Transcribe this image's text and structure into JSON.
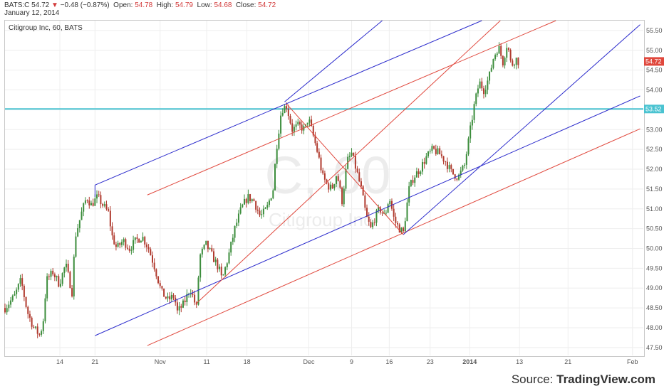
{
  "header": {
    "symbol": "BATS:C",
    "last": "54.72",
    "change_arrow": "▼",
    "change": "−0.48 (−0.87%)",
    "open_label": "Open:",
    "open": "54.78",
    "high_label": "High:",
    "high": "54.79",
    "low_label": "Low:",
    "low": "54.68",
    "close_label": "Close:",
    "close": "54.72",
    "date": "January 12, 2014"
  },
  "source": {
    "prefix": "Source: ",
    "brand": "TradingView.com"
  },
  "chart_data": {
    "type": "candlestick",
    "title": "Citigroup Inc, 60, BATS",
    "watermark_symbol": "C, 60",
    "watermark_name": "Citigroup Inc",
    "ylim": [
      47.3,
      55.75
    ],
    "yticks": [
      "47.50",
      "48.00",
      "48.50",
      "49.00",
      "49.50",
      "50.00",
      "50.50",
      "51.00",
      "51.50",
      "52.00",
      "52.50",
      "53.00",
      "53.50",
      "54.00",
      "54.50",
      "55.00",
      "55.50"
    ],
    "x_index_range": [
      0,
      100
    ],
    "xticks": [
      {
        "label": "14",
        "x": 8.6
      },
      {
        "label": "21",
        "x": 14.1
      },
      {
        "label": "Nov",
        "x": 24.3
      },
      {
        "label": "11",
        "x": 31.6
      },
      {
        "label": "18",
        "x": 37.9
      },
      {
        "label": "Dec",
        "x": 47.6
      },
      {
        "label": "9",
        "x": 54.3
      },
      {
        "label": "16",
        "x": 60.2
      },
      {
        "label": "23",
        "x": 66.6
      },
      {
        "label": "2014",
        "x": 72.8
      },
      {
        "label": "13",
        "x": 80.6
      },
      {
        "label": "21",
        "x": 88.2
      },
      {
        "label": "Feb",
        "x": 98.3
      }
    ],
    "price_labels": [
      {
        "value": 54.72,
        "text": "54.72",
        "color": "#e0483d"
      },
      {
        "value": 53.52,
        "text": "53.52",
        "color": "#4ac3d1"
      }
    ],
    "colors": {
      "up": "#3c8d3c",
      "down": "#b03a2e",
      "pitchfork_blue": "#2b2bcc",
      "pitchfork_red": "#e0483d",
      "hline": "#4ac3d1"
    },
    "horizontal_line": {
      "value": 53.52
    },
    "trend_lines": [
      {
        "color": "blue",
        "points": [
          [
            14.1,
            47.8
          ],
          [
            99.5,
            53.85
          ]
        ]
      },
      {
        "color": "blue",
        "points": [
          [
            14.1,
            51.6
          ],
          [
            74.7,
            55.75
          ]
        ]
      },
      {
        "color": "red",
        "points": [
          [
            22.3,
            47.55
          ],
          [
            99.5,
            53.02
          ]
        ]
      },
      {
        "color": "red",
        "points": [
          [
            22.3,
            51.35
          ],
          [
            86.3,
            55.75
          ]
        ]
      },
      {
        "color": "blue",
        "points": [
          [
            43.8,
            53.7
          ],
          [
            59.1,
            55.75
          ]
        ]
      },
      {
        "color": "blue",
        "points": [
          [
            62.4,
            50.35
          ],
          [
            99.5,
            55.65
          ]
        ]
      },
      {
        "color": "red",
        "points": [
          [
            29.9,
            48.6
          ],
          [
            77.6,
            55.75
          ]
        ]
      },
      {
        "color": "red",
        "points": [
          [
            44.1,
            53.65
          ],
          [
            62.4,
            50.35
          ]
        ]
      },
      {
        "color": "blue",
        "points": [
          [
            14.1,
            51.6
          ],
          [
            14.1,
            51.3
          ]
        ]
      }
    ],
    "price_path": [
      [
        0,
        48.5
      ],
      [
        1.5,
        48.8
      ],
      [
        2.5,
        49.2
      ],
      [
        3.5,
        48.4
      ],
      [
        4.5,
        48.0
      ],
      [
        5.5,
        47.8
      ],
      [
        6,
        48.2
      ],
      [
        6.5,
        49.2
      ],
      [
        7.5,
        49.4
      ],
      [
        8.5,
        49.1
      ],
      [
        9.5,
        49.6
      ],
      [
        10.5,
        48.9
      ],
      [
        11,
        50.3
      ],
      [
        12,
        50.9
      ],
      [
        12.8,
        51.3
      ],
      [
        13.5,
        51.1
      ],
      [
        14.5,
        51.3
      ],
      [
        15.3,
        51.1
      ],
      [
        16.2,
        50.9
      ],
      [
        16.8,
        50.3
      ],
      [
        17.5,
        50.0
      ],
      [
        18.5,
        50.2
      ],
      [
        19.5,
        50.0
      ],
      [
        20.5,
        50.2
      ],
      [
        21.5,
        50.3
      ],
      [
        22.5,
        50.0
      ],
      [
        23.5,
        49.5
      ],
      [
        24.5,
        48.9
      ],
      [
        25.5,
        48.7
      ],
      [
        26.5,
        48.8
      ],
      [
        27,
        48.4
      ],
      [
        28,
        48.6
      ],
      [
        29,
        49.0
      ],
      [
        30,
        48.5
      ],
      [
        30.5,
        49.8
      ],
      [
        31.5,
        50.1
      ],
      [
        32.5,
        49.8
      ],
      [
        33.5,
        49.5
      ],
      [
        34,
        49.2
      ],
      [
        35,
        49.8
      ],
      [
        36,
        50.5
      ],
      [
        37,
        51.0
      ],
      [
        38,
        51.3
      ],
      [
        39,
        51.2
      ],
      [
        40,
        50.8
      ],
      [
        41,
        51.0
      ],
      [
        42,
        51.5
      ],
      [
        42.5,
        52.5
      ],
      [
        43.3,
        53.5
      ],
      [
        44.1,
        53.6
      ],
      [
        45,
        53.0
      ],
      [
        46,
        53.1
      ],
      [
        47,
        53.0
      ],
      [
        47.5,
        53.3
      ],
      [
        48.2,
        52.9
      ],
      [
        49,
        52.4
      ],
      [
        49.8,
        51.8
      ],
      [
        50.5,
        51.6
      ],
      [
        51.2,
        51.5
      ],
      [
        52,
        51.9
      ],
      [
        52.8,
        51.2
      ],
      [
        53.6,
        52.2
      ],
      [
        54.3,
        52.4
      ],
      [
        55,
        52.0
      ],
      [
        55.8,
        51.5
      ],
      [
        56.6,
        50.8
      ],
      [
        57.3,
        50.5
      ],
      [
        58,
        50.8
      ],
      [
        58.7,
        51.0
      ],
      [
        59.5,
        50.8
      ],
      [
        60.2,
        51.3
      ],
      [
        61,
        50.7
      ],
      [
        61.8,
        50.5
      ],
      [
        62.4,
        50.4
      ],
      [
        63.3,
        51.5
      ],
      [
        64,
        51.8
      ],
      [
        65,
        52.0
      ],
      [
        66,
        52.3
      ],
      [
        67,
        52.5
      ],
      [
        68,
        52.4
      ],
      [
        69,
        52.2
      ],
      [
        70,
        51.9
      ],
      [
        71,
        51.8
      ],
      [
        72,
        52.1
      ],
      [
        72.8,
        52.9
      ],
      [
        73.5,
        53.6
      ],
      [
        74.3,
        54.2
      ],
      [
        75,
        54.0
      ],
      [
        75.8,
        54.3
      ],
      [
        76.5,
        54.8
      ],
      [
        77.3,
        55.1
      ],
      [
        78,
        54.7
      ],
      [
        78.7,
        55.2
      ],
      [
        79.3,
        54.6
      ],
      [
        80,
        54.8
      ],
      [
        80.4,
        54.72
      ]
    ]
  }
}
